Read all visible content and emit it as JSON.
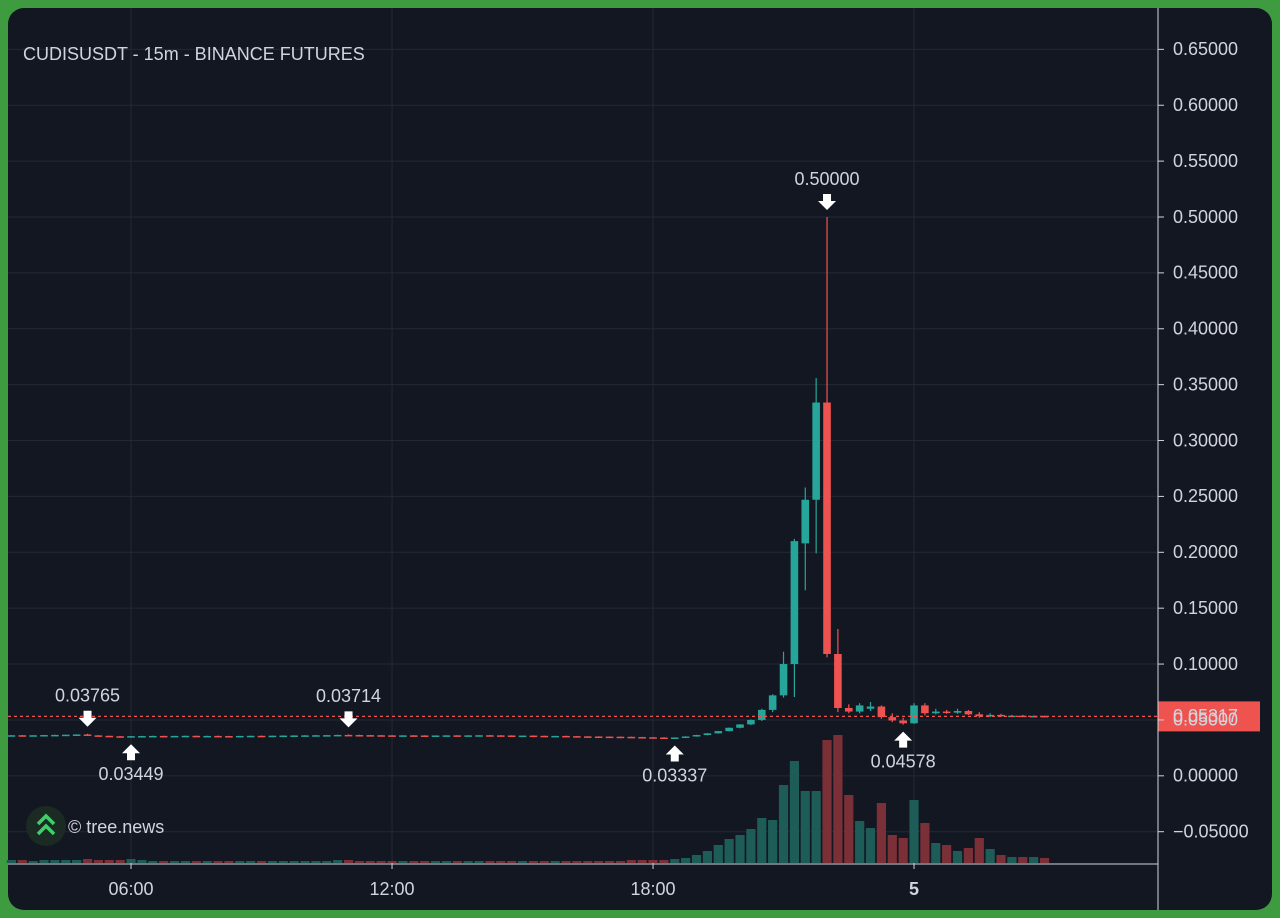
{
  "chart_data": {
    "type": "candlestick",
    "title": "CUDISUSDT - 15m - BINANCE FUTURES",
    "watermark": "© tree.news",
    "up_color": "#26a69a",
    "down_color": "#ef5350",
    "volume_up_color": "#1d5c57",
    "volume_down_color": "#7b2f36",
    "grid": true,
    "categories": [
      null,
      null,
      null,
      null,
      null,
      null,
      null,
      null,
      null,
      null,
      null,
      "06:00",
      null,
      null,
      null,
      null,
      null,
      null,
      null,
      null,
      null,
      null,
      null,
      null,
      null,
      null,
      null,
      null,
      null,
      null,
      null,
      null,
      null,
      null,
      null,
      "12:00",
      null,
      null,
      null,
      null,
      null,
      null,
      null,
      null,
      null,
      null,
      null,
      null,
      null,
      null,
      null,
      null,
      null,
      null,
      null,
      null,
      null,
      null,
      null,
      "18:00",
      null,
      null,
      null,
      null,
      null,
      null,
      null,
      null,
      null,
      null,
      null,
      null,
      null,
      null,
      null,
      null,
      null,
      null,
      null,
      null,
      null,
      null,
      null,
      "5",
      null,
      null,
      null,
      null,
      null,
      null,
      null,
      null,
      null,
      null,
      null,
      null
    ],
    "open": [
      0.0362,
      0.0363,
      0.0362,
      0.0363,
      0.0365,
      0.0366,
      0.0368,
      0.037,
      0.0362,
      0.0358,
      0.0354,
      0.0352,
      0.0355,
      0.0356,
      0.0357,
      0.0355,
      0.0357,
      0.0358,
      0.0356,
      0.0357,
      0.0356,
      0.0355,
      0.0357,
      0.0358,
      0.0357,
      0.0359,
      0.036,
      0.0361,
      0.0362,
      0.0363,
      0.0364,
      0.0366,
      0.0365,
      0.0364,
      0.0363,
      0.0362,
      0.0361,
      0.0362,
      0.0361,
      0.036,
      0.0361,
      0.0362,
      0.0361,
      0.0362,
      0.0363,
      0.0362,
      0.0361,
      0.0359,
      0.036,
      0.0358,
      0.0356,
      0.0357,
      0.0355,
      0.0353,
      0.0352,
      0.0351,
      0.035,
      0.0349,
      0.0347,
      0.0345,
      0.0343,
      0.0341,
      0.0343,
      0.0352,
      0.0365,
      0.038,
      0.04,
      0.043,
      0.046,
      0.05,
      0.059,
      0.072,
      0.1,
      0.208,
      0.247,
      0.334,
      0.109,
      0.0607,
      0.0575,
      0.06,
      0.062,
      0.0525,
      0.0495,
      0.047,
      0.063,
      0.056,
      0.0575,
      0.0565,
      0.058,
      0.055,
      0.0535,
      0.0545,
      0.0535,
      0.0538,
      0.0533,
      0.0536
    ],
    "high": [
      0.0364,
      0.0365,
      0.0364,
      0.0366,
      0.0368,
      0.037,
      0.0372,
      0.03765,
      0.0364,
      0.036,
      0.0357,
      0.0356,
      0.0358,
      0.0359,
      0.0359,
      0.0358,
      0.036,
      0.036,
      0.0359,
      0.036,
      0.0358,
      0.0358,
      0.036,
      0.0361,
      0.036,
      0.0362,
      0.0363,
      0.0364,
      0.0365,
      0.0366,
      0.0368,
      0.03714,
      0.0368,
      0.0366,
      0.0365,
      0.0364,
      0.0363,
      0.0364,
      0.0363,
      0.0362,
      0.0363,
      0.0364,
      0.0363,
      0.0364,
      0.0365,
      0.0364,
      0.0363,
      0.0361,
      0.0362,
      0.036,
      0.0358,
      0.0359,
      0.0357,
      0.0355,
      0.0354,
      0.0353,
      0.0352,
      0.0351,
      0.0349,
      0.0347,
      0.0345,
      0.0344,
      0.0354,
      0.0367,
      0.0382,
      0.0402,
      0.0432,
      0.0462,
      0.0505,
      0.06,
      0.073,
      0.111,
      0.212,
      0.258,
      0.356,
      0.5,
      0.1314,
      0.064,
      0.065,
      0.066,
      0.063,
      0.056,
      0.052,
      0.065,
      0.065,
      0.06,
      0.059,
      0.06,
      0.059,
      0.057,
      0.056,
      0.0555,
      0.0545,
      0.0545,
      0.054,
      0.054
    ],
    "low": [
      0.036,
      0.0361,
      0.0361,
      0.0362,
      0.0363,
      0.0365,
      0.0366,
      0.0366,
      0.0356,
      0.0352,
      0.035,
      0.03449,
      0.0353,
      0.0354,
      0.0354,
      0.0353,
      0.0355,
      0.0355,
      0.0354,
      0.0355,
      0.0353,
      0.0353,
      0.0355,
      0.0356,
      0.0355,
      0.0357,
      0.0358,
      0.0359,
      0.036,
      0.0361,
      0.0362,
      0.0364,
      0.0363,
      0.0362,
      0.0361,
      0.036,
      0.0359,
      0.036,
      0.0359,
      0.0358,
      0.0359,
      0.036,
      0.0359,
      0.036,
      0.0361,
      0.036,
      0.0358,
      0.0357,
      0.0357,
      0.0355,
      0.0354,
      0.0354,
      0.0352,
      0.035,
      0.0349,
      0.0348,
      0.0347,
      0.0346,
      0.0344,
      0.0342,
      0.034,
      0.03337,
      0.0341,
      0.035,
      0.0362,
      0.0377,
      0.0396,
      0.0425,
      0.0455,
      0.049,
      0.057,
      0.07,
      0.0705,
      0.166,
      0.199,
      0.106,
      0.057,
      0.056,
      0.056,
      0.058,
      0.051,
      0.048,
      0.04578,
      0.0465,
      0.054,
      0.055,
      0.0555,
      0.0555,
      0.0545,
      0.052,
      0.0525,
      0.053,
      0.0528,
      0.053,
      0.0528,
      0.0528
    ],
    "close": [
      0.0363,
      0.0362,
      0.0363,
      0.0365,
      0.0366,
      0.0368,
      0.037,
      0.0362,
      0.0358,
      0.0354,
      0.0352,
      0.0355,
      0.0356,
      0.0357,
      0.0355,
      0.0357,
      0.0358,
      0.0356,
      0.0357,
      0.0356,
      0.0355,
      0.0357,
      0.0358,
      0.0357,
      0.0359,
      0.036,
      0.0361,
      0.0362,
      0.0363,
      0.0364,
      0.0366,
      0.0365,
      0.0364,
      0.0363,
      0.0362,
      0.0361,
      0.0362,
      0.0361,
      0.036,
      0.0361,
      0.0362,
      0.0361,
      0.0362,
      0.0363,
      0.0362,
      0.0361,
      0.0359,
      0.036,
      0.0358,
      0.0356,
      0.0357,
      0.0355,
      0.0353,
      0.0352,
      0.0351,
      0.035,
      0.0349,
      0.0347,
      0.0345,
      0.0343,
      0.0341,
      0.0343,
      0.0352,
      0.0365,
      0.038,
      0.04,
      0.043,
      0.046,
      0.05,
      0.059,
      0.072,
      0.1,
      0.21,
      0.247,
      0.334,
      0.109,
      0.0607,
      0.0575,
      0.063,
      0.062,
      0.0525,
      0.0495,
      0.047,
      0.063,
      0.056,
      0.0575,
      0.0565,
      0.058,
      0.055,
      0.0535,
      0.0545,
      0.0535,
      0.0538,
      0.0533,
      0.0536,
      0.05317
    ],
    "volume": [
      3,
      3,
      2,
      3,
      3,
      3,
      3,
      4,
      3,
      3,
      3,
      4,
      3,
      2,
      2,
      2,
      2,
      2,
      2,
      2,
      2,
      2,
      2,
      2,
      2,
      2,
      2,
      2,
      2,
      2,
      3,
      3,
      2,
      2,
      2,
      2,
      2,
      2,
      2,
      2,
      2,
      2,
      2,
      2,
      2,
      2,
      2,
      2,
      2,
      2,
      2,
      2,
      2,
      2,
      2,
      2,
      2,
      3,
      3,
      3,
      3,
      4,
      5,
      8,
      12,
      18,
      24,
      28,
      34,
      45,
      43,
      78,
      102,
      72,
      72,
      123,
      128,
      68,
      42,
      35,
      60,
      28,
      25,
      63,
      40,
      20,
      18,
      12,
      15,
      25,
      14,
      8,
      6,
      6,
      6,
      5
    ],
    "annotations": [
      0.03765,
      0.03449,
      0.03714,
      0.03337,
      {
        "value": 0.5,
        "label": "0.50000"
      },
      0.04578
    ],
    "ylim": [
      -0.078,
      0.687
    ],
    "yticks": [
      {
        "value": -0.05,
        "label": "−0.05000"
      },
      {
        "value": 0,
        "label": "0.00000"
      },
      {
        "value": 0.05,
        "label": "0.05000"
      },
      {
        "value": 0.1,
        "label": "0.10000"
      },
      {
        "value": 0.15,
        "label": "0.15000"
      },
      {
        "value": 0.2,
        "label": "0.20000"
      },
      {
        "value": 0.25,
        "label": "0.25000"
      },
      {
        "value": 0.3,
        "label": "0.30000"
      },
      {
        "value": 0.35,
        "label": "0.35000"
      },
      {
        "value": 0.4,
        "label": "0.40000"
      },
      {
        "value": 0.45,
        "label": "0.45000"
      },
      {
        "value": 0.5,
        "label": "0.50000"
      },
      {
        "value": 0.55,
        "label": "0.55000"
      },
      {
        "value": 0.6,
        "label": "0.60000"
      },
      {
        "value": 0.65,
        "label": "0.65000"
      }
    ]
  }
}
